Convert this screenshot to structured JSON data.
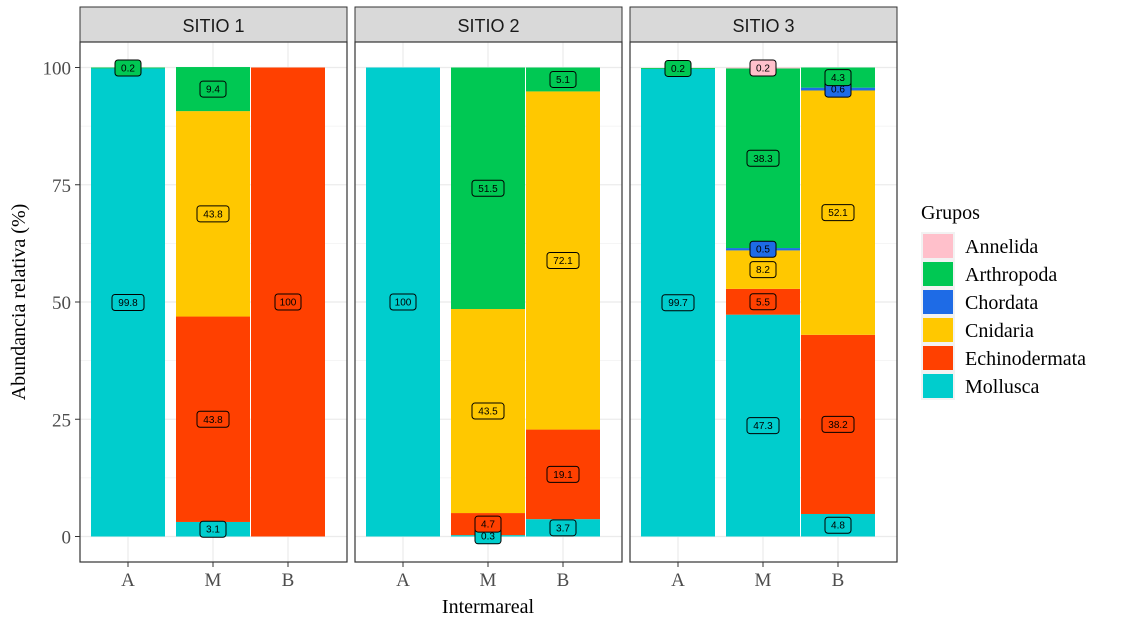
{
  "chart_data": {
    "type": "bar",
    "stacked": true,
    "xlabel": "Intermareal",
    "ylabel": "Abundancia relativa (%)",
    "ylim": [
      0,
      100
    ],
    "yticks": [
      0,
      25,
      50,
      75,
      100
    ],
    "categories": [
      "A",
      "M",
      "B"
    ],
    "legend": {
      "title": "Grupos",
      "position": "right",
      "entries": [
        "Annelida",
        "Arthropoda",
        "Chordata",
        "Cnidaria",
        "Echinodermata",
        "Mollusca"
      ]
    },
    "colors": {
      "Annelida": "#ffc0cb",
      "Arthropoda": "#00c853",
      "Chordata": "#1e6be6",
      "Cnidaria": "#ffc800",
      "Echinodermata": "#ff4000",
      "Mollusca": "#00cdcd"
    },
    "stack_order": [
      "Mollusca",
      "Echinodermata",
      "Cnidaria",
      "Chordata",
      "Arthropoda",
      "Annelida"
    ],
    "panels": [
      {
        "strip": "SITIO 1",
        "bars": [
          {
            "category": "A",
            "segments": [
              {
                "group": "Mollusca",
                "value": 99.8,
                "label": "99.8"
              },
              {
                "group": "Arthropoda",
                "value": 0.2,
                "label": "0.2"
              }
            ]
          },
          {
            "category": "M",
            "segments": [
              {
                "group": "Mollusca",
                "value": 3.1,
                "label": "3.1"
              },
              {
                "group": "Echinodermata",
                "value": 43.8,
                "label": "43.8"
              },
              {
                "group": "Cnidaria",
                "value": 43.8,
                "label": "43.8"
              },
              {
                "group": "Arthropoda",
                "value": 9.4,
                "label": "9.4"
              }
            ]
          },
          {
            "category": "B",
            "segments": [
              {
                "group": "Echinodermata",
                "value": 100,
                "label": "100"
              }
            ]
          }
        ]
      },
      {
        "strip": "SITIO 2",
        "bars": [
          {
            "category": "A",
            "segments": [
              {
                "group": "Mollusca",
                "value": 100,
                "label": "100"
              }
            ]
          },
          {
            "category": "M",
            "segments": [
              {
                "group": "Mollusca",
                "value": 0.3,
                "label": "0.3"
              },
              {
                "group": "Echinodermata",
                "value": 4.7,
                "label": "4.7"
              },
              {
                "group": "Cnidaria",
                "value": 43.5,
                "label": "43.5"
              },
              {
                "group": "Arthropoda",
                "value": 51.5,
                "label": "51.5"
              }
            ]
          },
          {
            "category": "B",
            "segments": [
              {
                "group": "Mollusca",
                "value": 3.7,
                "label": "3.7"
              },
              {
                "group": "Echinodermata",
                "value": 19.1,
                "label": "19.1"
              },
              {
                "group": "Cnidaria",
                "value": 72.1,
                "label": "72.1"
              },
              {
                "group": "Arthropoda",
                "value": 5.1,
                "label": "5.1"
              }
            ]
          }
        ]
      },
      {
        "strip": "SITIO 3",
        "bars": [
          {
            "category": "A",
            "segments": [
              {
                "group": "Mollusca",
                "value": 99.7,
                "label": "99.7"
              },
              {
                "group": "Arthropoda",
                "value": 0.2,
                "label": "0.2"
              }
            ]
          },
          {
            "category": "M",
            "segments": [
              {
                "group": "Mollusca",
                "value": 47.3,
                "label": "47.3"
              },
              {
                "group": "Echinodermata",
                "value": 5.5,
                "label": "5.5"
              },
              {
                "group": "Cnidaria",
                "value": 8.2,
                "label": "8.2"
              },
              {
                "group": "Chordata",
                "value": 0.5,
                "label": "0.5"
              },
              {
                "group": "Arthropoda",
                "value": 38.3,
                "label": "38.3"
              },
              {
                "group": "Annelida",
                "value": 0.2,
                "label": "0.2"
              }
            ]
          },
          {
            "category": "B",
            "segments": [
              {
                "group": "Mollusca",
                "value": 4.8,
                "label": "4.8"
              },
              {
                "group": "Echinodermata",
                "value": 38.2,
                "label": "38.2"
              },
              {
                "group": "Cnidaria",
                "value": 52.1,
                "label": "52.1"
              },
              {
                "group": "Chordata",
                "value": 0.6,
                "label": "0.6"
              },
              {
                "group": "Arthropoda",
                "value": 4.3,
                "label": "4.3"
              }
            ]
          }
        ]
      }
    ]
  }
}
